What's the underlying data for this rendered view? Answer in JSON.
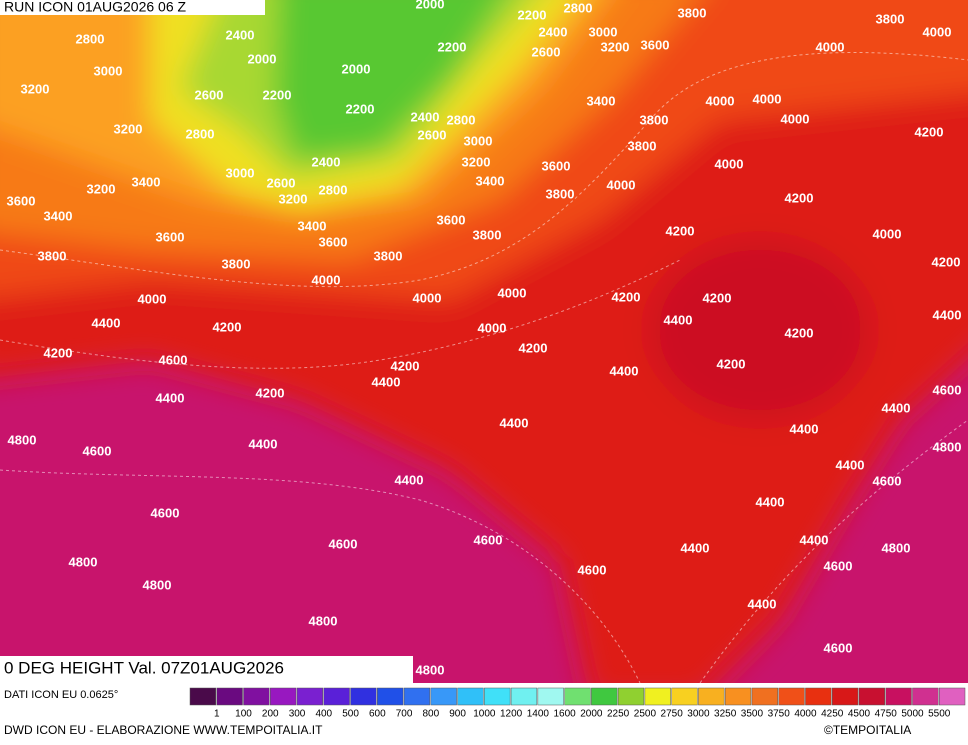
{
  "header": {
    "run": "RUN ICON 01AUG2026 06 Z"
  },
  "map": {
    "title": "0 DEG HEIGHT Val. 07Z01AUG2026",
    "contour_labels": [
      2000,
      2200,
      2800,
      3800,
      3800,
      4000,
      2800,
      2400,
      2000,
      2200,
      2400,
      3000,
      3200,
      2600,
      3600,
      4000,
      3000,
      2000,
      3200,
      2600,
      2200,
      3400,
      4000,
      4000,
      2200,
      2400,
      2800,
      4000,
      3800,
      3200,
      2800,
      2600,
      3000,
      3800,
      4200,
      2400,
      3200,
      3600,
      4000,
      3000,
      3400,
      3200,
      2600,
      2800,
      3400,
      4000,
      3600,
      3200,
      3800,
      4200,
      3400,
      3400,
      3600,
      3600,
      3600,
      3800,
      4200,
      4000,
      3800,
      3800,
      3800,
      4200,
      4000,
      4000,
      4000,
      4000,
      4200,
      4200,
      4400,
      4200,
      4000,
      4400,
      4200,
      4400,
      4200,
      4200,
      4600,
      4200,
      4400,
      4400,
      4200,
      4400,
      4200,
      4600,
      4400,
      4800,
      4400,
      4400,
      4600,
      4400,
      4800,
      4400,
      4400,
      4600,
      4600,
      4400,
      4600,
      4600,
      4400,
      4400,
      4800,
      4800,
      4600,
      4600,
      4800,
      4400,
      4800,
      4600,
      4800
    ]
  },
  "legend": {
    "source": "DATI ICON EU 0.0625°",
    "levels": [
      "1",
      "100",
      "200",
      "300",
      "400",
      "500",
      "600",
      "700",
      "800",
      "900",
      "1000",
      "1200",
      "1400",
      "1600",
      "2000",
      "2250",
      "2500",
      "2750",
      "3000",
      "3250",
      "3500",
      "3750",
      "4000",
      "4250",
      "4500",
      "4750",
      "5000",
      "5500"
    ],
    "colors": [
      "#4a0a4a",
      "#6a0a80",
      "#8010a0",
      "#9818c0",
      "#7a20d0",
      "#5a20d8",
      "#3030e0",
      "#2050e8",
      "#3070f0",
      "#3898f8",
      "#30c0f8",
      "#40e0f8",
      "#70f0f0",
      "#a0f8f0",
      "#70e070",
      "#40c840",
      "#90d030",
      "#f0f020",
      "#f8d020",
      "#f8b020",
      "#f89020",
      "#f07020",
      "#f05018",
      "#e83010",
      "#d81818",
      "#c81030",
      "#c81060",
      "#d03090",
      "#e060c0"
    ]
  },
  "footer": {
    "credit": "DWD ICON EU - ELABORAZIONE WWW.TEMPOITALIA.IT",
    "brand": "©TEMPOITALIA"
  }
}
